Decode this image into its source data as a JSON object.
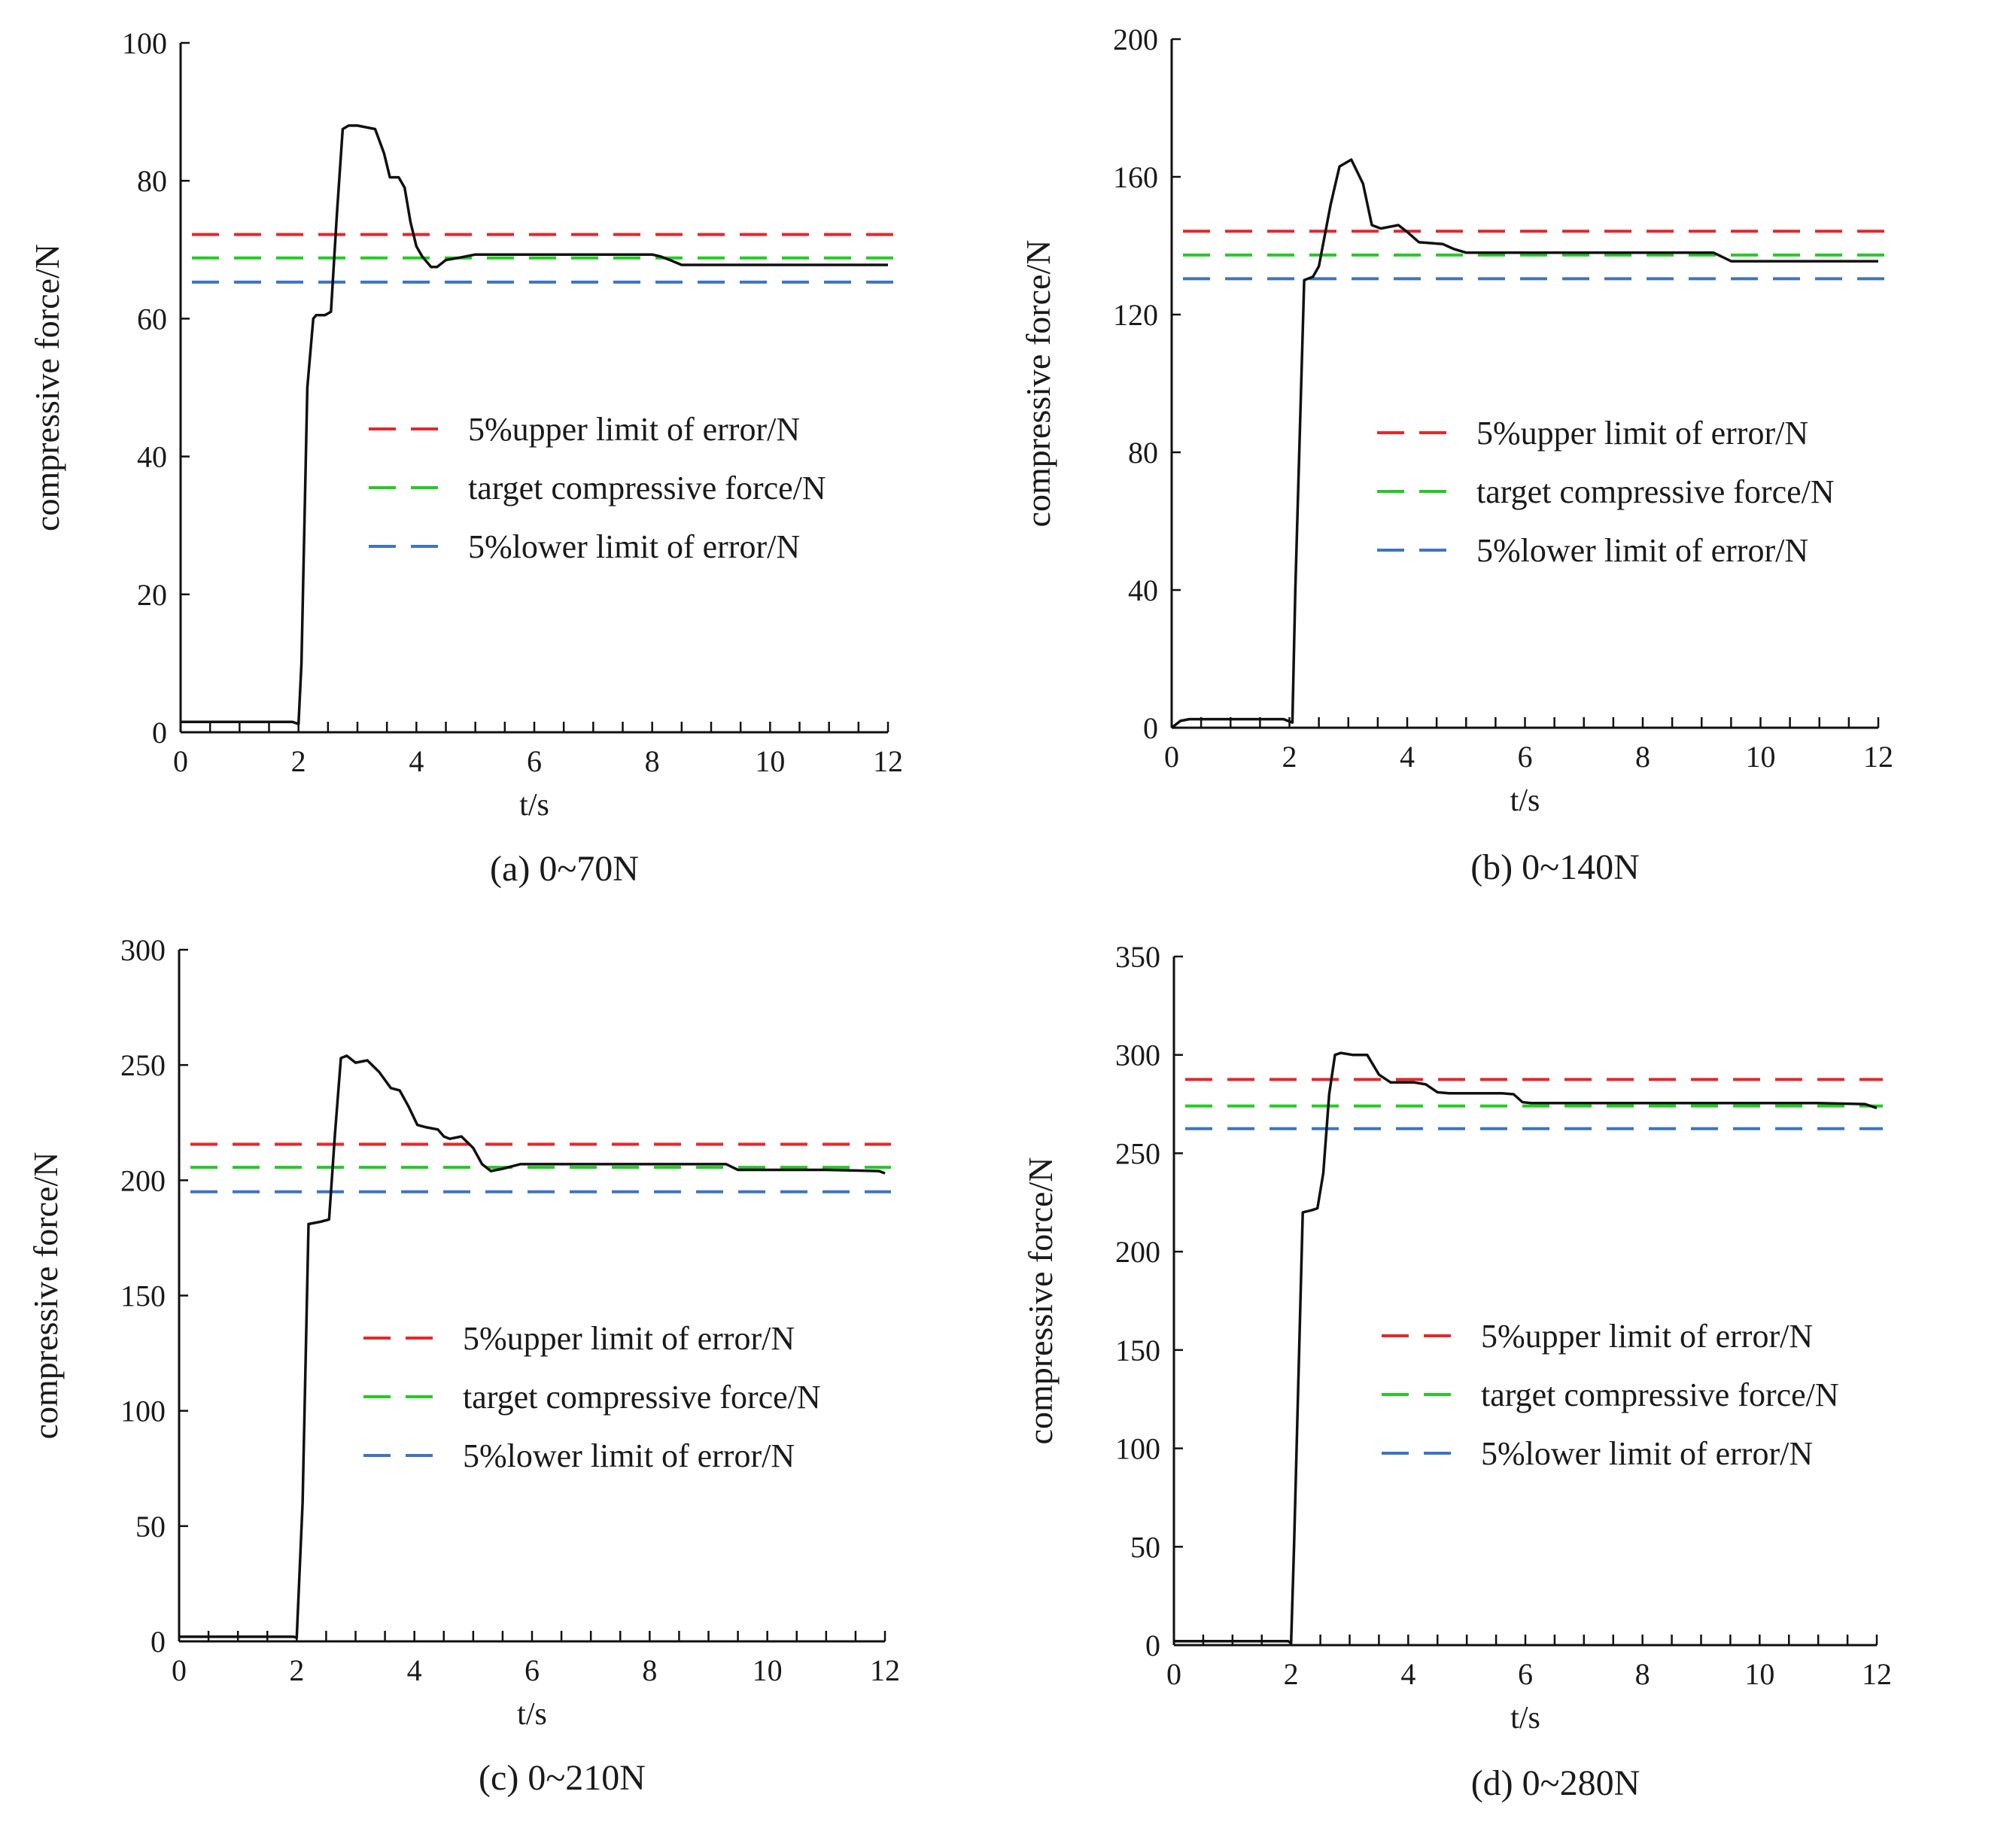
{
  "colors": {
    "upper": "#e8262a",
    "target": "#22cc22",
    "lower": "#3d74c4",
    "response": "#111111",
    "axis": "#111111"
  },
  "legend_labels": {
    "upper": "5%upper limit of error/N",
    "target": "target compressive force/N",
    "lower": "5%lower limit of error/N"
  },
  "chart_data": [
    {
      "type": "line",
      "caption": "(a) 0~70N",
      "xlabel": "t/s",
      "ylabel": "compressive force/N",
      "xlim": [
        0,
        12
      ],
      "ylim": [
        0,
        100
      ],
      "xticks": [
        0,
        2,
        4,
        6,
        8,
        10,
        12
      ],
      "yticks": [
        0,
        20,
        40,
        60,
        80,
        100
      ],
      "legend_position": "center-right",
      "reference_lines": {
        "upper": 72.2,
        "target": 68.8,
        "lower": 65.3
      },
      "series": [
        {
          "name": "response",
          "x": [
            0,
            0.2,
            1,
            1.9,
            2.0,
            2.05,
            2.15,
            2.25,
            2.3,
            2.45,
            2.55,
            2.65,
            2.75,
            2.85,
            3.0,
            3.3,
            3.45,
            3.55,
            3.7,
            3.8,
            3.9,
            4.0,
            4.1,
            4.25,
            4.35,
            4.5,
            4.7,
            5.0,
            6,
            7,
            8.0,
            8.15,
            8.3,
            8.5,
            9,
            10,
            11,
            12
          ],
          "y": [
            1.5,
            1.5,
            1.5,
            1.5,
            1.2,
            10,
            50,
            60,
            60.5,
            60.5,
            61,
            75,
            87.5,
            88,
            88,
            87.5,
            84,
            80.5,
            80.5,
            79,
            74,
            70.5,
            69,
            67.5,
            67.5,
            68.5,
            68.8,
            69.3,
            69.3,
            69.3,
            69.3,
            69,
            68.5,
            67.8,
            67.8,
            67.8,
            67.8,
            67.8
          ]
        }
      ]
    },
    {
      "type": "line",
      "caption": "(b) 0~140N",
      "xlabel": "t/s",
      "ylabel": "compressive force/N",
      "xlim": [
        0,
        12
      ],
      "ylim": [
        0,
        200
      ],
      "xticks": [
        0,
        2,
        4,
        6,
        8,
        10,
        12
      ],
      "yticks": [
        0,
        40,
        80,
        120,
        160,
        200
      ],
      "legend_position": "center-right",
      "reference_lines": {
        "upper": 144.2,
        "target": 137.3,
        "lower": 130.4
      },
      "series": [
        {
          "name": "response",
          "x": [
            0,
            0.15,
            0.3,
            1,
            1.9,
            2.05,
            2.1,
            2.25,
            2.4,
            2.5,
            2.7,
            2.85,
            3.05,
            3.25,
            3.4,
            3.55,
            3.85,
            4.0,
            4.2,
            4.6,
            4.8,
            5.0,
            6,
            7,
            8,
            9.2,
            9.5,
            10,
            11,
            12
          ],
          "y": [
            0,
            2,
            2.5,
            2.5,
            2.5,
            1.5,
            40,
            130,
            131,
            134,
            152,
            163,
            165,
            158,
            146,
            145,
            146,
            144,
            141,
            140.5,
            139,
            138,
            138,
            138,
            138,
            138,
            135.5,
            135.5,
            135.5,
            135.5
          ]
        }
      ]
    },
    {
      "type": "line",
      "caption": "(c) 0~210N",
      "xlabel": "t/s",
      "ylabel": "compressive force/N",
      "xlim": [
        0,
        12
      ],
      "ylim": [
        0,
        300
      ],
      "xticks": [
        0,
        2,
        4,
        6,
        8,
        10,
        12
      ],
      "yticks": [
        0,
        50,
        100,
        150,
        200,
        250,
        300
      ],
      "legend_position": "center-right",
      "reference_lines": {
        "upper": 215.6,
        "target": 205.6,
        "lower": 195.0
      },
      "series": [
        {
          "name": "response",
          "x": [
            0,
            1,
            1.95,
            2.0,
            2.1,
            2.2,
            2.4,
            2.55,
            2.65,
            2.75,
            2.85,
            3.0,
            3.2,
            3.4,
            3.6,
            3.75,
            3.9,
            4.05,
            4.2,
            4.4,
            4.5,
            4.6,
            4.8,
            5.0,
            5.15,
            5.3,
            5.5,
            5.8,
            6,
            7,
            8,
            9.3,
            9.5,
            10,
            11,
            11.9,
            12
          ],
          "y": [
            2,
            2,
            2,
            1.5,
            60,
            181,
            182,
            183,
            220,
            253,
            254,
            251,
            252,
            247,
            240,
            239,
            232,
            224,
            223,
            222,
            219,
            218,
            219,
            214,
            207,
            204,
            205,
            207,
            207,
            207,
            207,
            207,
            204.5,
            204.5,
            204.5,
            204,
            203
          ]
        }
      ]
    },
    {
      "type": "line",
      "caption": "(d) 0~280N",
      "xlabel": "t/s",
      "ylabel": "compressive force/N",
      "xlim": [
        0,
        12
      ],
      "ylim": [
        0,
        350
      ],
      "xticks": [
        0,
        2,
        4,
        6,
        8,
        10,
        12
      ],
      "yticks": [
        0,
        50,
        100,
        150,
        200,
        250,
        300,
        350
      ],
      "legend_position": "center-right",
      "reference_lines": {
        "upper": 287.5,
        "target": 274.0,
        "lower": 262.5
      },
      "series": [
        {
          "name": "response",
          "x": [
            0,
            1,
            1.95,
            2.0,
            2.05,
            2.2,
            2.35,
            2.45,
            2.55,
            2.65,
            2.75,
            2.85,
            3.05,
            3.3,
            3.5,
            3.7,
            4.1,
            4.3,
            4.5,
            4.7,
            5.6,
            5.8,
            5.95,
            6.1,
            7,
            8,
            9,
            10,
            11,
            11.8,
            12
          ],
          "y": [
            2,
            2,
            2,
            1,
            50,
            220,
            221,
            222,
            240,
            280,
            300,
            301,
            300,
            300,
            290,
            286,
            286,
            285,
            281,
            280.5,
            280.5,
            280,
            276,
            275.5,
            275.5,
            275.5,
            275.5,
            275.5,
            275.5,
            275,
            273
          ]
        }
      ]
    }
  ]
}
